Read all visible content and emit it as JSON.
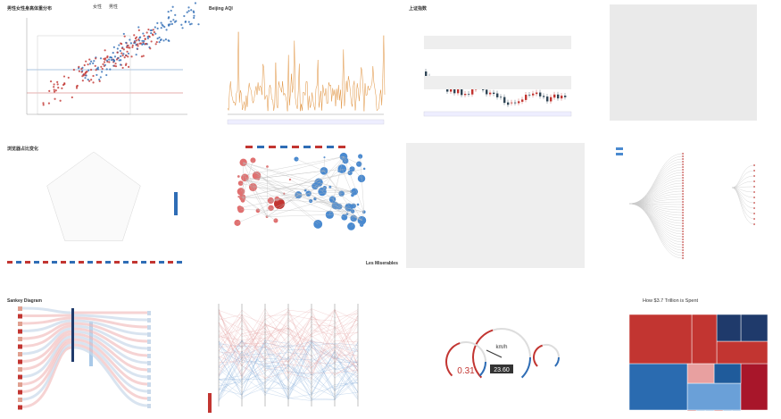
{
  "panels": {
    "scatter": {
      "title": "男性女性身高体重分布",
      "legend": [
        "女性",
        "男性"
      ]
    },
    "aqi": {
      "title": "Beijing AQI"
    },
    "stock": {
      "title": "上证指数"
    },
    "radar": {
      "title": "浏览器占比变化"
    },
    "graph": {
      "label": "Les Miserables"
    },
    "sankey": {
      "title": "Sankey Diagram"
    },
    "gauge": {
      "values": [
        "0.31",
        "23.60"
      ],
      "unit": "km/h"
    },
    "treemap": {
      "title": "How $3.7 Trillion is Spent"
    }
  }
}
